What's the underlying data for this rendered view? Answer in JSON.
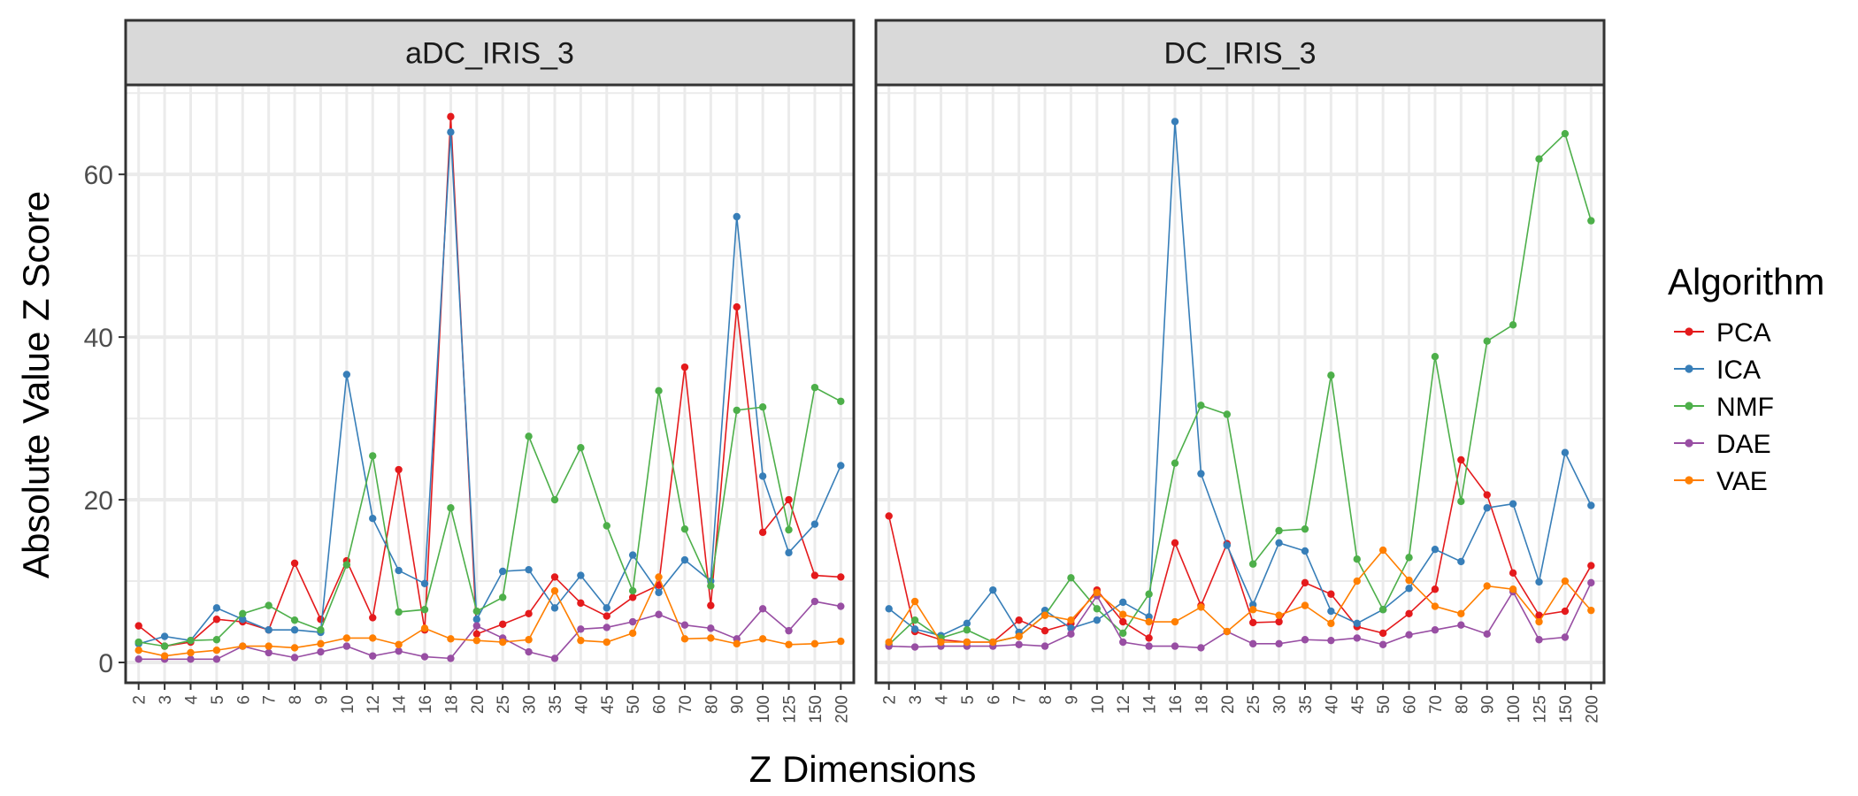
{
  "chart_data": {
    "type": "line",
    "xlabel": "Z Dimensions",
    "ylabel": "Absolute Value Z Score",
    "ylim": [
      -2.5,
      71
    ],
    "yticks": [
      0,
      20,
      40,
      60
    ],
    "grid": true,
    "legend": {
      "title": "Algorithm",
      "placement": "right"
    },
    "categories": [
      "2",
      "3",
      "4",
      "5",
      "6",
      "7",
      "8",
      "9",
      "10",
      "12",
      "14",
      "16",
      "18",
      "20",
      "25",
      "30",
      "35",
      "40",
      "45",
      "50",
      "60",
      "70",
      "80",
      "90",
      "100",
      "125",
      "150",
      "200"
    ],
    "colors": {
      "PCA": "#E41A1C",
      "ICA": "#377EB8",
      "NMF": "#4DAF4A",
      "DAE": "#984EA3",
      "VAE": "#FF7F00"
    },
    "panels": [
      {
        "title": "aDC_IRIS_3",
        "series": [
          {
            "name": "PCA",
            "values": [
              4.5,
              2.0,
              2.5,
              5.3,
              5.0,
              4.0,
              12.2,
              5.3,
              12.5,
              5.5,
              23.7,
              4.0,
              67.1,
              3.5,
              4.7,
              6.0,
              10.5,
              7.3,
              5.7,
              8.0,
              9.5,
              36.3,
              7.0,
              43.7,
              16.0,
              20.0,
              10.7,
              10.5
            ]
          },
          {
            "name": "ICA",
            "values": [
              2.3,
              3.2,
              2.7,
              6.7,
              5.3,
              4.0,
              4.0,
              3.7,
              35.4,
              17.7,
              11.3,
              9.7,
              65.2,
              5.3,
              11.2,
              11.4,
              6.7,
              10.7,
              6.7,
              13.2,
              8.6,
              12.6,
              10.0,
              54.8,
              22.9,
              13.5,
              17.0,
              24.2
            ]
          },
          {
            "name": "NMF",
            "values": [
              2.5,
              2.0,
              2.7,
              2.8,
              6.0,
              7.0,
              5.2,
              4.0,
              12.0,
              25.4,
              6.2,
              6.5,
              19.0,
              6.3,
              8.0,
              27.8,
              20.0,
              26.4,
              16.8,
              8.8,
              33.4,
              16.4,
              9.4,
              31.0,
              31.4,
              16.3,
              33.8,
              32.1
            ]
          },
          {
            "name": "DAE",
            "values": [
              0.4,
              0.4,
              0.4,
              0.4,
              2.0,
              1.2,
              0.6,
              1.3,
              2.0,
              0.8,
              1.4,
              0.7,
              0.5,
              4.5,
              3.0,
              1.3,
              0.5,
              4.1,
              4.3,
              5.0,
              5.9,
              4.6,
              4.2,
              2.9,
              6.6,
              3.9,
              7.5,
              6.9
            ]
          },
          {
            "name": "VAE",
            "values": [
              1.5,
              0.8,
              1.2,
              1.5,
              2.0,
              2.0,
              1.8,
              2.3,
              3.0,
              3.0,
              2.2,
              4.2,
              2.9,
              2.7,
              2.5,
              2.8,
              8.8,
              2.7,
              2.5,
              3.6,
              10.5,
              2.9,
              3.0,
              2.3,
              2.9,
              2.2,
              2.3,
              2.6
            ]
          }
        ]
      },
      {
        "title": "DC_IRIS_3",
        "series": [
          {
            "name": "PCA",
            "values": [
              18.0,
              3.8,
              2.8,
              2.5,
              2.5,
              5.2,
              3.9,
              4.8,
              8.9,
              5.0,
              3.0,
              14.7,
              7.0,
              14.6,
              4.9,
              5.0,
              9.8,
              8.4,
              4.4,
              3.6,
              6.0,
              9.0,
              24.9,
              20.6,
              11.0,
              5.8,
              6.3,
              11.9
            ]
          },
          {
            "name": "ICA",
            "values": [
              6.6,
              4.1,
              3.3,
              4.8,
              8.9,
              3.7,
              6.4,
              4.2,
              5.2,
              7.4,
              5.6,
              66.5,
              23.2,
              14.4,
              7.1,
              14.7,
              13.7,
              6.3,
              4.8,
              6.5,
              9.1,
              13.9,
              12.4,
              19.0,
              19.5,
              9.9,
              25.8,
              19.3
            ]
          },
          {
            "name": "NMF",
            "values": [
              2.2,
              5.2,
              3.0,
              4.0,
              2.5,
              3.2,
              5.8,
              10.4,
              6.6,
              3.6,
              8.4,
              24.5,
              31.6,
              30.5,
              12.1,
              16.2,
              16.4,
              35.3,
              12.7,
              6.5,
              12.9,
              37.6,
              19.8,
              39.5,
              41.5,
              61.9,
              65.0,
              54.3
            ]
          },
          {
            "name": "DAE",
            "values": [
              2.0,
              1.9,
              2.0,
              2.0,
              2.0,
              2.2,
              2.0,
              3.5,
              8.2,
              2.5,
              2.0,
              2.0,
              1.8,
              3.8,
              2.3,
              2.3,
              2.8,
              2.7,
              3.0,
              2.2,
              3.4,
              4.0,
              4.6,
              3.5,
              8.7,
              2.8,
              3.1,
              9.8
            ]
          },
          {
            "name": "VAE",
            "values": [
              2.5,
              7.5,
              2.5,
              2.5,
              2.5,
              3.2,
              5.8,
              5.2,
              8.6,
              5.9,
              5.0,
              5.0,
              6.8,
              3.8,
              6.5,
              5.8,
              7.0,
              4.8,
              10.0,
              13.8,
              10.1,
              6.9,
              6.0,
              9.4,
              9.0,
              5.0,
              10.0,
              6.4
            ]
          }
        ]
      }
    ]
  }
}
